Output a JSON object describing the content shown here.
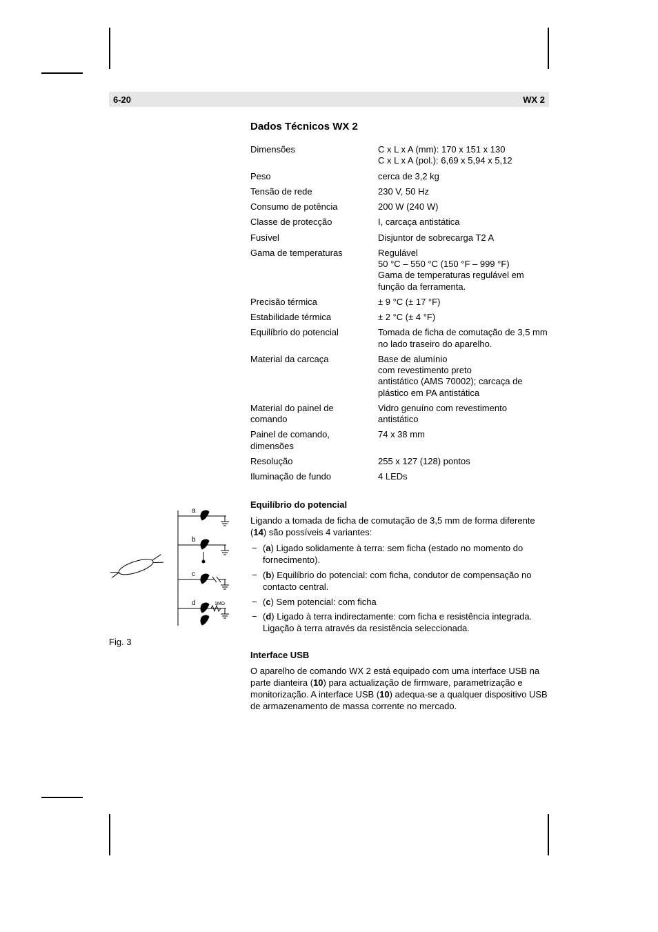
{
  "header": {
    "page_number": "6-20",
    "model": "WX 2",
    "bar_bg": "#e6e6e6"
  },
  "spec_section": {
    "title": "Dados Técnicos WX 2",
    "rows": [
      {
        "label": "Dimensões",
        "value": "C x L x A (mm): 170 x 151 x 130\nC x L x A (pol.): 6,69 x 5,94 x 5,12"
      },
      {
        "label": "Peso",
        "value": "cerca de 3,2 kg"
      },
      {
        "label": "Tensão de rede",
        "value": "230 V, 50 Hz"
      },
      {
        "label": "Consumo de potência",
        "value": "200 W (240 W)"
      },
      {
        "label": "Classe de protecção",
        "value": "I, carcaça antistática"
      },
      {
        "label": "Fusível",
        "value": "Disjuntor de sobrecarga T2 A"
      },
      {
        "label": "Gama de temperaturas",
        "value": "Regulável\n50 °C – 550 °C (150 °F – 999 °F)\nGama de temperaturas regulável em função da ferramenta."
      },
      {
        "label": "Precisão térmica",
        "value": "± 9 °C (± 17 °F)"
      },
      {
        "label": "Estabilidade térmica",
        "value": "± 2 °C (± 4 °F)"
      },
      {
        "label": "Equilíbrio do potencial",
        "value": "Tomada de ficha de comutação de 3,5 mm no lado traseiro do aparelho."
      },
      {
        "label": "Material da carcaça",
        "value": "Base de alumínio\ncom revestimento preto\nantistático (AMS 70002); carcaça de plástico em PA antistática"
      },
      {
        "label": "Material do painel de comando",
        "value": "Vidro genuíno com revestimento antistático"
      },
      {
        "label": "Painel de comando, dimensões",
        "value": "74 x 38 mm"
      },
      {
        "label": "Resolução",
        "value": "255 x 127 (128) pontos"
      },
      {
        "label": "Iluminação de fundo",
        "value": "4 LEDs"
      }
    ]
  },
  "equilibrium": {
    "title": "Equilíbrio do potencial",
    "intro_pre": "Ligando a tomada de ficha de comutação de 3,5 mm de forma diferente (",
    "intro_bold": "14",
    "intro_post": ") são possíveis 4 variantes:",
    "items": [
      {
        "key": "a",
        "pre": "(",
        "bold": "a",
        "post": ") Ligado solidamente à terra: sem ficha (estado no momento do fornecimento)."
      },
      {
        "key": "b",
        "pre": "(",
        "bold": "b",
        "post": ") Equilíbrio do potencial: com ficha, condutor de compensação no contacto central."
      },
      {
        "key": "c",
        "pre": "(",
        "bold": "c",
        "post": ") Sem potencial: com ficha"
      },
      {
        "key": "d",
        "pre": "(",
        "bold": "d",
        "post": ") Ligado à terra indirectamente: com ficha e resistência integrada. Ligação à terra através da resistência seleccionada."
      }
    ]
  },
  "usb": {
    "title": "Interface USB",
    "p1_a": "O aparelho de comando WX 2 está equipado com uma interface USB na parte dianteira (",
    "p1_b": "10",
    "p1_c": ") para actualização de firmware, parametrização e monitorização. A interface USB (",
    "p1_d": "10",
    "p1_e": ") adequa-se a qualquer dispositivo USB de armazenamento de massa corrente no mercado."
  },
  "figure": {
    "caption": "Fig. 3",
    "labels": {
      "a": "a",
      "b": "b",
      "c": "c",
      "d": "d"
    },
    "colors": {
      "stroke": "#000000",
      "fill": "#ffffff"
    }
  }
}
